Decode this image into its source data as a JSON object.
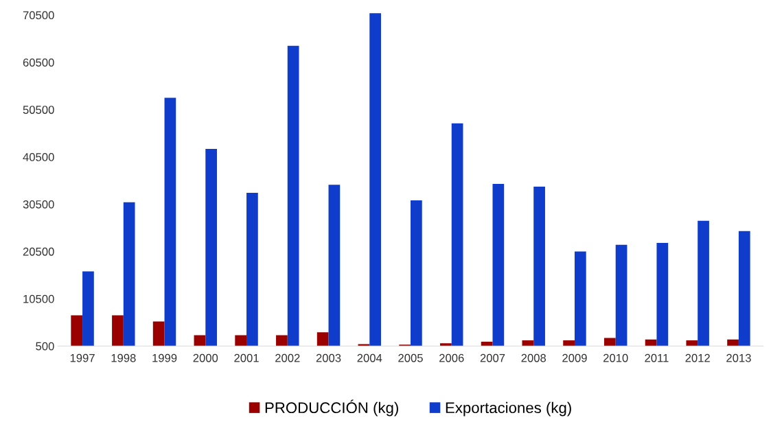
{
  "chart_data": {
    "type": "bar",
    "categories": [
      "1997",
      "1998",
      "1999",
      "2000",
      "2001",
      "2002",
      "2003",
      "2004",
      "2005",
      "2006",
      "2007",
      "2008",
      "2009",
      "2010",
      "2011",
      "2012",
      "2013"
    ],
    "series": [
      {
        "name": "PRODUCCIÓN (kg)",
        "color": "#9b0000",
        "values": [
          7000,
          7000,
          5700,
          2800,
          2800,
          2800,
          3400,
          900,
          800,
          1100,
          1400,
          1700,
          1700,
          2200,
          1900,
          1700,
          1900
        ]
      },
      {
        "name": "Exportaciones (kg)",
        "color": "#103ccb",
        "values": [
          16300,
          30900,
          53000,
          42200,
          32900,
          64000,
          34600,
          70900,
          31300,
          47600,
          34800,
          34200,
          20500,
          21900,
          22300,
          27000,
          24800
        ]
      }
    ],
    "ylim": [
      500,
      71000
    ],
    "yticks": [
      500,
      10500,
      20500,
      30500,
      40500,
      50500,
      60500,
      70500
    ],
    "grid": false,
    "legend": "bottom"
  }
}
